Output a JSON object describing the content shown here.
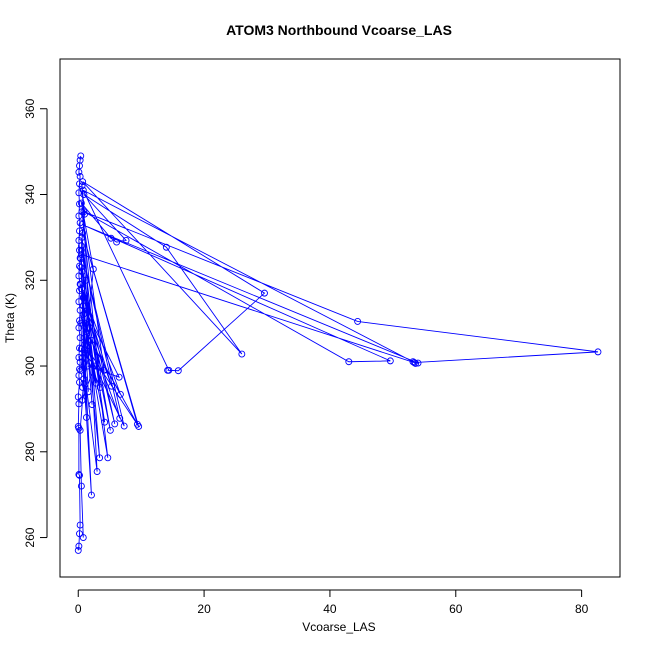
{
  "chart_data": {
    "type": "line",
    "title": "ATOM3 Northbound Vcoarse_LAS",
    "xlabel": "Vcoarse_LAS",
    "ylabel": "Theta (K)",
    "xlim": [
      -2.9,
      86.1
    ],
    "ylim": [
      250.8,
      371.6
    ],
    "x_ticks": [
      0,
      20,
      40,
      60,
      80
    ],
    "y_ticks": [
      260,
      280,
      300,
      320,
      340,
      360
    ],
    "markers": "open-circle",
    "grid": false,
    "legend": "none",
    "color": "#0000ff",
    "series": [
      {
        "points": [
          [
            0.0,
            257.0
          ],
          [
            0.1,
            258.0
          ],
          [
            0.2,
            260.9
          ],
          [
            0.3,
            262.9
          ],
          [
            0.2,
            274.5
          ],
          [
            0.1,
            274.7
          ],
          [
            0.1,
            285.5
          ],
          [
            0.0,
            285.9
          ],
          [
            0.1,
            291.2
          ],
          [
            0.0,
            292.8
          ],
          [
            0.2,
            296.2
          ],
          [
            0.1,
            297.8
          ],
          [
            0.2,
            299.3
          ],
          [
            0.3,
            300.9
          ],
          [
            0.1,
            302.0
          ],
          [
            0.2,
            304.2
          ],
          [
            0.3,
            306.6
          ],
          [
            0.1,
            308.9
          ],
          [
            0.2,
            310.6
          ],
          [
            0.3,
            313.0
          ],
          [
            0.1,
            315.0
          ],
          [
            0.2,
            317.6
          ],
          [
            0.3,
            319.1
          ],
          [
            0.1,
            321.0
          ],
          [
            0.2,
            323.3
          ],
          [
            0.3,
            325.2
          ],
          [
            0.2,
            327.0
          ],
          [
            0.1,
            329.3
          ],
          [
            0.2,
            331.5
          ],
          [
            0.3,
            333.4
          ],
          [
            0.1,
            335.0
          ],
          [
            0.2,
            337.8
          ],
          [
            0.1,
            340.4
          ],
          [
            0.2,
            342.5
          ],
          [
            0.3,
            344.2
          ],
          [
            0.1,
            345.2
          ],
          [
            0.2,
            346.7
          ],
          [
            0.3,
            348.0
          ],
          [
            0.4,
            349.0
          ]
        ]
      },
      {
        "points": [
          [
            0.8,
            260.0
          ],
          [
            0.5,
            272.0
          ],
          [
            0.3,
            285.0
          ],
          [
            0.9,
            296.0
          ],
          [
            0.4,
            310.0
          ],
          [
            1.2,
            320.0
          ],
          [
            0.5,
            328.0
          ],
          [
            1.0,
            335.4
          ],
          [
            0.6,
            342.0
          ],
          [
            3.0,
            275.4
          ],
          [
            0.7,
            302.0
          ],
          [
            2.1,
            269.9
          ],
          [
            0.5,
            318.0
          ],
          [
            3.4,
            278.6
          ],
          [
            0.6,
            330.0
          ],
          [
            4.7,
            278.6
          ],
          [
            0.8,
            312.0
          ],
          [
            2.8,
            296.0
          ],
          [
            0.4,
            325.0
          ],
          [
            5.1,
            285.0
          ],
          [
            0.9,
            316.0
          ],
          [
            5.8,
            286.5
          ],
          [
            0.6,
            322.0
          ],
          [
            4.2,
            286.9
          ],
          [
            1.1,
            310.0
          ],
          [
            6.6,
            287.8
          ],
          [
            0.5,
            327.0
          ],
          [
            7.3,
            286.0
          ],
          [
            1.0,
            305.0
          ],
          [
            9.6,
            285.9
          ],
          [
            0.7,
            331.0
          ],
          [
            9.4,
            286.4
          ],
          [
            1.2,
            308.0
          ],
          [
            6.7,
            293.4
          ],
          [
            0.4,
            319.0
          ],
          [
            5.3,
            295.3
          ],
          [
            0.8,
            314.0
          ],
          [
            6.5,
            297.4
          ],
          [
            1.5,
            300.0
          ],
          [
            4.1,
            299.0
          ],
          [
            0.6,
            336.0
          ],
          [
            3.5,
            295.0
          ],
          [
            1.1,
            303.0
          ],
          [
            2.4,
            322.6
          ],
          [
            0.5,
            338.0
          ],
          [
            5.2,
            329.8
          ],
          [
            6.1,
            328.9
          ],
          [
            7.6,
            329.3
          ],
          [
            0.9,
            340.0
          ],
          [
            14.0,
            327.7
          ],
          [
            26.0,
            302.8
          ],
          [
            0.7,
            343.0
          ],
          [
            29.6,
            317.0
          ],
          [
            15.9,
            298.9
          ],
          [
            14.2,
            299.0
          ],
          [
            14.4,
            299.0
          ],
          [
            0.8,
            341.0
          ],
          [
            53.2,
            301.0
          ],
          [
            53.6,
            300.6
          ],
          [
            54.0,
            300.7
          ],
          [
            0.6,
            333.0
          ],
          [
            49.6,
            301.2
          ],
          [
            43.0,
            301.0
          ],
          [
            0.9,
            336.0
          ],
          [
            44.4,
            310.4
          ],
          [
            82.6,
            303.3
          ],
          [
            53.4,
            300.8
          ],
          [
            0.5,
            326.0
          ],
          [
            0.9,
            297.0
          ],
          [
            1.5,
            313.0
          ],
          [
            0.4,
            299.0
          ],
          [
            2.1,
            306.0
          ],
          [
            0.7,
            295.0
          ],
          [
            1.8,
            309.0
          ],
          [
            0.6,
            292.0
          ],
          [
            2.6,
            300.0
          ],
          [
            0.5,
            304.0
          ],
          [
            1.3,
            288.0
          ],
          [
            0.8,
            316.0
          ],
          [
            2.2,
            291.0
          ],
          [
            0.4,
            323.0
          ],
          [
            1.6,
            294.0
          ]
        ]
      }
    ]
  }
}
